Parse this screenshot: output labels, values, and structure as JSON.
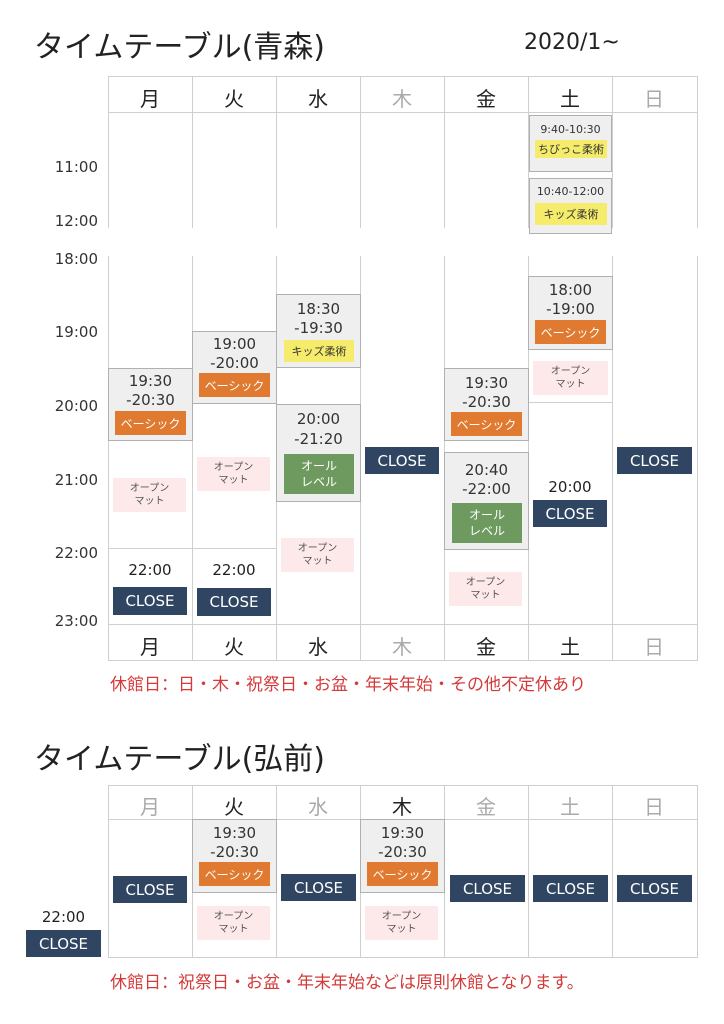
{
  "aomori": {
    "title": "タイムテーブル(青森)",
    "start": "2020/1~",
    "days": [
      "月",
      "火",
      "水",
      "木",
      "金",
      "土",
      "日"
    ],
    "time_labels": [
      "11:00",
      "12:00",
      "18:00",
      "19:00",
      "20:00",
      "21:00",
      "22:00",
      "23:00"
    ],
    "kids_morning_1": {
      "time": "9:40-10:30",
      "label": "ちびっこ柔術"
    },
    "kids_morning_2": {
      "time": "10:40-12:00",
      "label": "キッズ柔術"
    },
    "mon": {
      "time1": "19:30",
      "time2": "-20:30",
      "label": "ベーシック",
      "open1": "オープン",
      "open2": "マット",
      "close_time": "22:00",
      "close": "CLOSE"
    },
    "tue": {
      "time1": "19:00",
      "time2": "-20:00",
      "label": "ベーシック",
      "open1": "オープン",
      "open2": "マット",
      "close_time": "22:00",
      "close": "CLOSE"
    },
    "wed": {
      "k_time1": "18:30",
      "k_time2": "-19:30",
      "k_label": "キッズ柔術",
      "a_time1": "20:00",
      "a_time2": "-21:20",
      "a_label1": "オール",
      "a_label2": "レベル",
      "open1": "オープン",
      "open2": "マット"
    },
    "thu": {
      "close": "CLOSE"
    },
    "fri": {
      "b_time1": "19:30",
      "b_time2": "-20:30",
      "b_label": "ベーシック",
      "a_time1": "20:40",
      "a_time2": "-22:00",
      "a_label1": "オール",
      "a_label2": "レベル",
      "open1": "オープン",
      "open2": "マット"
    },
    "sat": {
      "b_time1": "18:00",
      "b_time2": "-19:00",
      "b_label": "ベーシック",
      "open1": "オープン",
      "open2": "マット",
      "close_time": "20:00",
      "close": "CLOSE"
    },
    "sun": {
      "close": "CLOSE"
    },
    "note": "休館日：日・木・祝祭日・お盆・年末年始・その他不定休あり"
  },
  "hirosaki": {
    "title": "タイムテーブル(弘前)",
    "days": [
      "月",
      "火",
      "水",
      "木",
      "金",
      "土",
      "日"
    ],
    "time_label": "22:00",
    "close": "CLOSE",
    "tue": {
      "time1": "19:30",
      "time2": "-20:30",
      "label": "ベーシック",
      "open1": "オープン",
      "open2": "マット"
    },
    "thu": {
      "time1": "19:30",
      "time2": "-20:30",
      "label": "ベーシック",
      "open1": "オープン",
      "open2": "マット"
    },
    "note": "休館日：祝祭日・お盆・年末年始などは原則休館となります。"
  },
  "colors": {
    "close": "#2f4562",
    "basic": "#e07a30",
    "all_level": "#6e9a60",
    "kids": "#f6ec6c",
    "open_mat": "#fde8ea",
    "note": "#d43a3a"
  }
}
